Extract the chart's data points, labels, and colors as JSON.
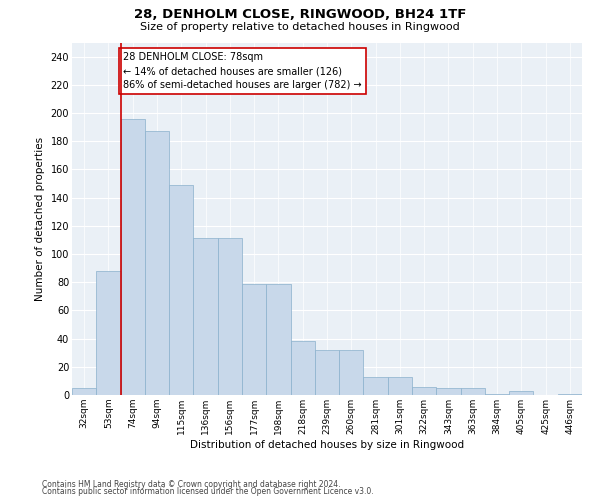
{
  "title1": "28, DENHOLM CLOSE, RINGWOOD, BH24 1TF",
  "title2": "Size of property relative to detached houses in Ringwood",
  "xlabel": "Distribution of detached houses by size in Ringwood",
  "ylabel": "Number of detached properties",
  "categories": [
    "32sqm",
    "53sqm",
    "74sqm",
    "94sqm",
    "115sqm",
    "136sqm",
    "156sqm",
    "177sqm",
    "198sqm",
    "218sqm",
    "239sqm",
    "260sqm",
    "281sqm",
    "301sqm",
    "322sqm",
    "343sqm",
    "363sqm",
    "384sqm",
    "405sqm",
    "425sqm",
    "446sqm"
  ],
  "bar_values": [
    5,
    88,
    196,
    187,
    149,
    111,
    111,
    79,
    79,
    38,
    32,
    32,
    13,
    13,
    6,
    5,
    5,
    1,
    3,
    0,
    1
  ],
  "bar_color": "#c8d8ea",
  "bar_edge_color": "#8ab0cc",
  "vline_color": "#cc0000",
  "vline_position": 1.5,
  "annotation_text": "28 DENHOLM CLOSE: 78sqm\n← 14% of detached houses are smaller (126)\n86% of semi-detached houses are larger (782) →",
  "ylim": [
    0,
    250
  ],
  "yticks": [
    0,
    20,
    40,
    60,
    80,
    100,
    120,
    140,
    160,
    180,
    200,
    220,
    240
  ],
  "bg_color": "#eaf0f6",
  "grid_color": "#ffffff",
  "footer1": "Contains HM Land Registry data © Crown copyright and database right 2024.",
  "footer2": "Contains public sector information licensed under the Open Government Licence v3.0."
}
